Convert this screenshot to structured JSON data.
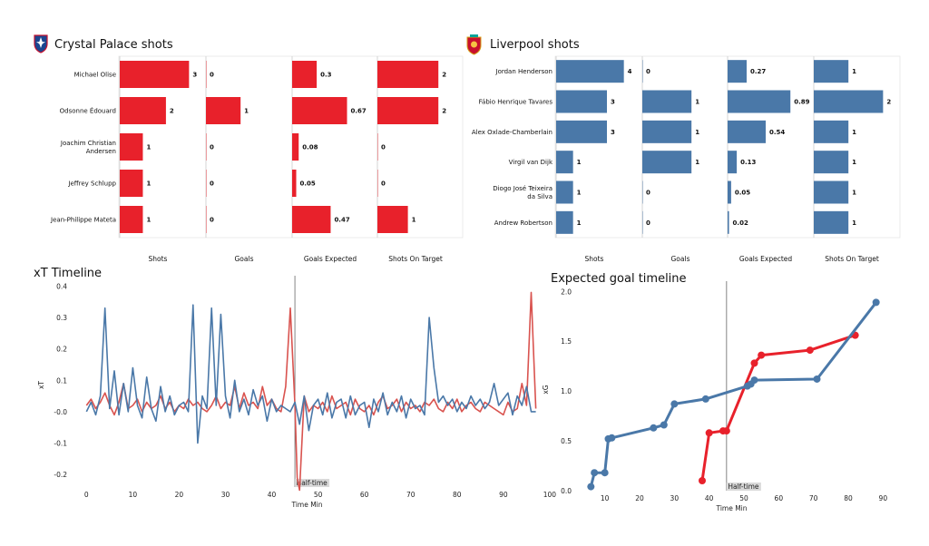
{
  "colors": {
    "palace": "#e8212b",
    "liverpool": "#4a78a8",
    "halftime_line": "#777777"
  },
  "chart_data": [
    {
      "type": "bar",
      "orientation": "horizontal",
      "id": "palace-shots",
      "title": "Crystal Palace shots",
      "logo_icon": "crystal-palace-crest-icon",
      "color": "#e8212b",
      "players": [
        "Michael Olise",
        "Odsonne Édouard",
        "Joachim Christian Andersen",
        "Jeffrey  Schlupp",
        "Jean-Philippe Mateta"
      ],
      "metrics": [
        {
          "name": "Shots",
          "values": [
            3,
            2,
            1,
            1,
            1
          ],
          "labels": [
            "3",
            "2",
            "1",
            "1",
            "1"
          ],
          "max": 3.3
        },
        {
          "name": "Goals",
          "values": [
            0,
            1,
            0,
            0,
            0
          ],
          "labels": [
            "0",
            "1",
            "0",
            "0",
            "0"
          ],
          "max": 2.2
        },
        {
          "name": "Goals Expected",
          "values": [
            0.3,
            0.67,
            0.08,
            0.05,
            0.47
          ],
          "labels": [
            "0.3",
            "0.67",
            "0.08",
            "0.05",
            "0.47"
          ],
          "max": 0.93
        },
        {
          "name": "Shots On Target",
          "values": [
            2,
            2,
            0,
            0,
            1
          ],
          "labels": [
            "2",
            "2",
            "0",
            "0",
            "1"
          ],
          "max": 2.5
        }
      ]
    },
    {
      "type": "bar",
      "orientation": "horizontal",
      "id": "liverpool-shots",
      "title": "Liverpool shots",
      "logo_icon": "liverpool-crest-icon",
      "color": "#4a78a8",
      "players": [
        "Jordan Henderson",
        "Fábio Henrique Tavares",
        "Alex Oxlade-Chamberlain",
        "Virgil van Dijk",
        "Diogo José Teixeira da Silva",
        "Andrew Robertson"
      ],
      "metrics": [
        {
          "name": "Shots",
          "values": [
            4,
            3,
            3,
            1,
            1,
            1
          ],
          "labels": [
            "4",
            "3",
            "3",
            "1",
            "1",
            "1"
          ],
          "max": 4.5
        },
        {
          "name": "Goals",
          "values": [
            0,
            1,
            1,
            1,
            0,
            0
          ],
          "labels": [
            "0",
            "1",
            "1",
            "1",
            "0",
            "0"
          ],
          "max": 1.55
        },
        {
          "name": "Goals Expected",
          "values": [
            0.27,
            0.89,
            0.54,
            0.13,
            0.05,
            0.02
          ],
          "labels": [
            "0.27",
            "0.89",
            "0.54",
            "0.13",
            "0.05",
            "0.02"
          ],
          "max": 1.08
        },
        {
          "name": "Shots On Target",
          "values": [
            1,
            2,
            1,
            1,
            1,
            1
          ],
          "labels": [
            "1",
            "2",
            "1",
            "1",
            "1",
            "1"
          ],
          "max": 2.2
        }
      ]
    },
    {
      "type": "line",
      "id": "xt-timeline",
      "title": "xT Timeline",
      "xlabel": "Time Min",
      "ylabel": "xT",
      "xlim": [
        -3,
        101
      ],
      "ylim": [
        -0.24,
        0.41
      ],
      "xticks": [
        0,
        10,
        20,
        30,
        40,
        50,
        60,
        70,
        80,
        90,
        100
      ],
      "yticks": [
        -0.2,
        -0.1,
        0.0,
        0.1,
        0.2,
        0.3,
        0.4
      ],
      "ytick_labels": [
        "-0.2",
        "-0.1",
        "-0.0",
        "0.1",
        "0.2",
        "0.3",
        "0.4"
      ],
      "halftime_x": 45,
      "halftime_label": "Half-time",
      "series": [
        {
          "color": "#d9534f",
          "x": [
            0,
            1,
            2,
            3,
            4,
            5,
            6,
            7,
            8,
            9,
            10,
            11,
            12,
            13,
            14,
            15,
            16,
            17,
            18,
            19,
            20,
            21,
            22,
            23,
            24,
            25,
            26,
            27,
            28,
            29,
            30,
            31,
            32,
            33,
            34,
            35,
            36,
            37,
            38,
            39,
            40,
            41,
            42,
            43,
            44,
            45,
            45.5,
            46,
            47,
            48,
            49,
            50,
            51,
            52,
            53,
            54,
            55,
            56,
            57,
            58,
            59,
            60,
            61,
            62,
            63,
            64,
            65,
            66,
            67,
            68,
            69,
            70,
            71,
            72,
            73,
            74,
            75,
            76,
            77,
            78,
            79,
            80,
            81,
            82,
            83,
            84,
            85,
            86,
            87,
            88,
            89,
            90,
            91,
            92,
            93,
            94,
            95,
            96,
            97
          ],
          "y": [
            0.02,
            0.04,
            0.01,
            0.03,
            0.06,
            0.02,
            -0.01,
            0.03,
            0.09,
            0.01,
            0.02,
            0.04,
            0.0,
            0.03,
            0.01,
            0.02,
            0.05,
            0.01,
            0.03,
            0.0,
            0.02,
            0.01,
            0.04,
            0.02,
            0.03,
            0.01,
            0.0,
            0.02,
            0.05,
            0.01,
            0.03,
            0.02,
            0.08,
            0.01,
            0.06,
            0.02,
            0.03,
            0.01,
            0.08,
            0.02,
            0.04,
            0.01,
            0.0,
            0.08,
            0.33,
            0.02,
            -0.21,
            -0.25,
            0.05,
            0.0,
            0.02,
            0.01,
            0.03,
            0.0,
            0.05,
            0.01,
            0.02,
            0.03,
            -0.01,
            0.04,
            0.01,
            0.0,
            0.02,
            -0.01,
            0.03,
            0.05,
            0.01,
            0.02,
            0.04,
            0.0,
            0.03,
            0.01,
            0.02,
            0.0,
            0.03,
            0.02,
            0.04,
            0.01,
            0.0,
            0.03,
            0.01,
            0.04,
            0.0,
            0.02,
            0.03,
            0.01,
            0.0,
            0.03,
            0.02,
            0.01,
            0.0,
            -0.01,
            0.03,
            0.0,
            0.01,
            0.09,
            0.02,
            0.38,
            0.01
          ]
        },
        {
          "color": "#4a78a8",
          "x": [
            0,
            1,
            2,
            3,
            4,
            5,
            6,
            7,
            8,
            9,
            10,
            11,
            12,
            13,
            14,
            15,
            16,
            17,
            18,
            19,
            20,
            21,
            22,
            23,
            24,
            25,
            26,
            27,
            28,
            29,
            30,
            31,
            32,
            33,
            34,
            35,
            36,
            37,
            38,
            39,
            40,
            41,
            42,
            43,
            44,
            45,
            46,
            47,
            48,
            49,
            50,
            51,
            52,
            53,
            54,
            55,
            56,
            57,
            58,
            59,
            60,
            61,
            62,
            63,
            64,
            65,
            66,
            67,
            68,
            69,
            70,
            71,
            72,
            73,
            74,
            75,
            76,
            77,
            78,
            79,
            80,
            81,
            82,
            83,
            84,
            85,
            86,
            87,
            88,
            89,
            90,
            91,
            92,
            93,
            94,
            95,
            96,
            97
          ],
          "y": [
            0.0,
            0.03,
            -0.01,
            0.05,
            0.33,
            0.01,
            0.13,
            -0.01,
            0.09,
            0.0,
            0.14,
            0.02,
            -0.02,
            0.11,
            0.01,
            -0.03,
            0.08,
            0.0,
            0.05,
            -0.01,
            0.02,
            0.03,
            0.0,
            0.34,
            -0.1,
            0.05,
            0.01,
            0.33,
            0.02,
            0.31,
            0.05,
            -0.02,
            0.1,
            0.0,
            0.04,
            -0.01,
            0.07,
            0.02,
            0.05,
            -0.03,
            0.04,
            0.0,
            0.02,
            0.01,
            0.0,
            0.03,
            -0.04,
            0.05,
            -0.06,
            0.02,
            0.04,
            -0.01,
            0.06,
            -0.02,
            0.03,
            0.04,
            -0.02,
            0.05,
            -0.01,
            0.02,
            0.03,
            -0.05,
            0.04,
            0.0,
            0.06,
            -0.01,
            0.03,
            0.0,
            0.05,
            -0.02,
            0.04,
            0.01,
            0.02,
            -0.01,
            0.3,
            0.14,
            0.03,
            0.05,
            0.02,
            0.04,
            0.0,
            0.03,
            0.01,
            0.05,
            0.02,
            0.04,
            0.01,
            0.03,
            0.09,
            0.02,
            0.04,
            0.06,
            -0.01,
            0.05,
            0.02,
            0.08,
            0.0,
            0.0
          ]
        }
      ]
    },
    {
      "type": "line",
      "id": "xg-timeline",
      "title": "Expected goal timeline",
      "xlabel": "Time Min",
      "ylabel": "xG",
      "xlim": [
        2,
        92
      ],
      "ylim": [
        0,
        2.03
      ],
      "xticks": [
        10,
        20,
        30,
        40,
        50,
        60,
        70,
        80,
        90
      ],
      "yticks": [
        0.0,
        0.5,
        1.0,
        1.5,
        2.0
      ],
      "ytick_labels": [
        "0.0",
        "0.5",
        "1.0",
        "1.5",
        "2.0"
      ],
      "halftime_x": 45,
      "halftime_label": "Half-time",
      "series": [
        {
          "color": "#e8212b",
          "x": [
            38,
            40,
            44,
            45,
            53,
            55,
            69,
            82
          ],
          "y": [
            0.1,
            0.58,
            0.6,
            0.6,
            1.28,
            1.36,
            1.41,
            1.56
          ]
        },
        {
          "color": "#4a78a8",
          "x": [
            6,
            7,
            10,
            11,
            12,
            24,
            27,
            30,
            39,
            51,
            52,
            53,
            71,
            88
          ],
          "y": [
            0.04,
            0.18,
            0.18,
            0.52,
            0.53,
            0.63,
            0.66,
            0.87,
            0.92,
            1.05,
            1.07,
            1.11,
            1.12,
            1.89
          ]
        }
      ]
    }
  ]
}
